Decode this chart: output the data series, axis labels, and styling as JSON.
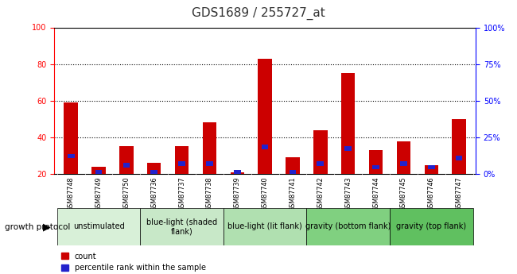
{
  "title": "GDS1689 / 255727_at",
  "samples": [
    "GSM87748",
    "GSM87749",
    "GSM87750",
    "GSM87736",
    "GSM87737",
    "GSM87738",
    "GSM87739",
    "GSM87740",
    "GSM87741",
    "GSM87742",
    "GSM87743",
    "GSM87744",
    "GSM87745",
    "GSM87746",
    "GSM87747"
  ],
  "count_values": [
    59,
    24,
    35,
    26,
    35,
    48,
    21,
    83,
    29,
    44,
    75,
    33,
    38,
    25,
    50
  ],
  "percentile_values": [
    31,
    22,
    26,
    22,
    27,
    27,
    22,
    36,
    22,
    27,
    35,
    25,
    27,
    25,
    30
  ],
  "groups": [
    {
      "label": "unstimulated",
      "start": 0,
      "end": 3,
      "color": "#d8f0d8"
    },
    {
      "label": "blue-light (shaded\nflank)",
      "start": 3,
      "end": 6,
      "color": "#c8e8c8"
    },
    {
      "label": "blue-light (lit flank)",
      "start": 6,
      "end": 9,
      "color": "#b0e0b0"
    },
    {
      "label": "gravity (bottom flank)",
      "start": 9,
      "end": 12,
      "color": "#80d080"
    },
    {
      "label": "gravity (top flank)",
      "start": 12,
      "end": 15,
      "color": "#60c060"
    }
  ],
  "ylim_left": [
    20,
    100
  ],
  "ylim_right": [
    0,
    100
  ],
  "yticks_left": [
    20,
    40,
    60,
    80,
    100
  ],
  "yticks_right": [
    0,
    25,
    50,
    75,
    100
  ],
  "ytick_labels_right": [
    "0%",
    "25%",
    "50%",
    "75%",
    "100%"
  ],
  "bar_color_red": "#cc0000",
  "bar_color_blue": "#2222cc",
  "bar_width": 0.5,
  "blue_bar_width": 0.25,
  "background_color": "#ffffff",
  "plot_bg_color": "#ffffff",
  "tick_label_bg": "#c8c8c8",
  "legend_count_label": "count",
  "legend_percentile_label": "percentile rank within the sample",
  "growth_protocol_label": "growth protocol",
  "title_color": "#333333",
  "grid_lines": [
    40,
    60,
    80
  ],
  "title_fontsize": 11,
  "tick_fontsize": 7,
  "label_fontsize": 7,
  "group_fontsize": 7
}
